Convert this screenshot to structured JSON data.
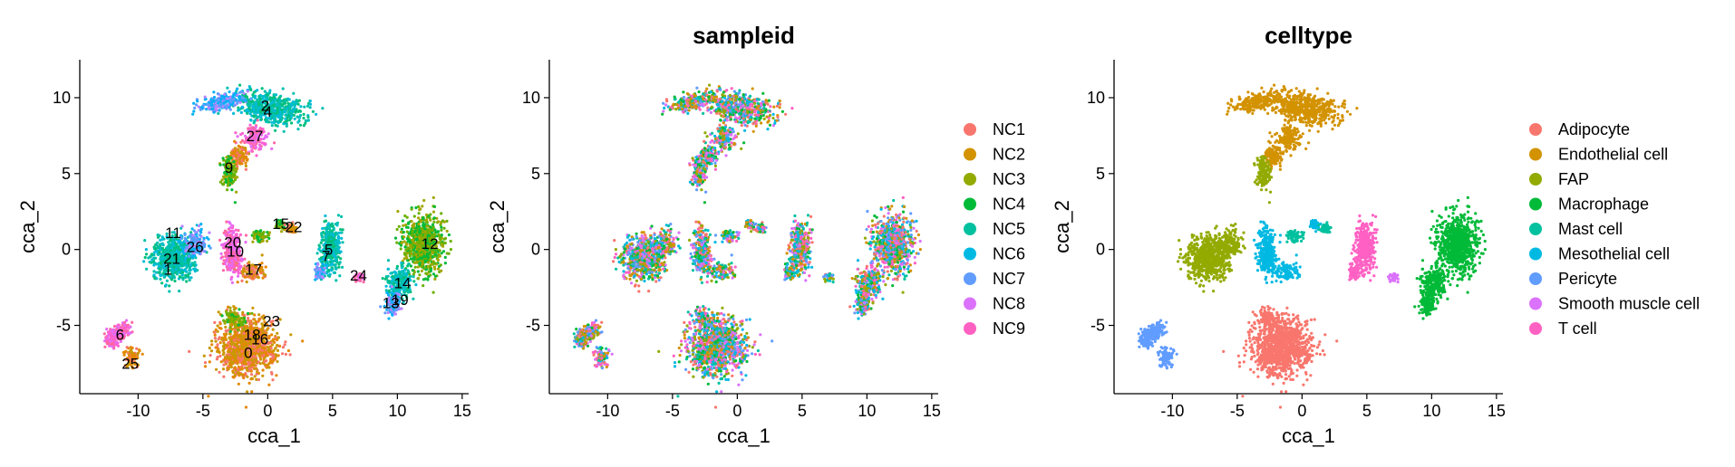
{
  "chart_data": [
    {
      "type": "scatter",
      "title": "",
      "xlabel": "cca_1",
      "ylabel": "cca_2",
      "xlim": [
        -14.5,
        15.5
      ],
      "ylim": [
        -9.5,
        12.5
      ],
      "xticks": [
        -10,
        -5,
        0,
        5,
        10,
        15
      ],
      "yticks": [
        -5,
        0,
        5,
        10
      ],
      "xtick_labels": [
        "-10",
        "-5",
        "0",
        "5",
        "10",
        "15"
      ],
      "ytick_labels": [
        "-5",
        "0",
        "5",
        "10"
      ],
      "color_by": "cluster",
      "legend": "none",
      "grid": false,
      "cluster_labels": [
        {
          "text": "0",
          "x": -1.5,
          "y": -6.8
        },
        {
          "text": "1",
          "x": -7.7,
          "y": -1.3
        },
        {
          "text": "2",
          "x": -0.2,
          "y": 9.5
        },
        {
          "text": "4",
          "x": 0.0,
          "y": 9.1
        },
        {
          "text": "5",
          "x": 4.7,
          "y": 0.0
        },
        {
          "text": "6",
          "x": -11.4,
          "y": -5.6
        },
        {
          "text": "7",
          "x": 4.5,
          "y": -0.4
        },
        {
          "text": "9",
          "x": -3.0,
          "y": 5.4
        },
        {
          "text": "10",
          "x": -2.5,
          "y": -0.1
        },
        {
          "text": "11",
          "x": -7.3,
          "y": 1.1
        },
        {
          "text": "12",
          "x": 12.5,
          "y": 0.4
        },
        {
          "text": "13",
          "x": 9.5,
          "y": -3.5
        },
        {
          "text": "14",
          "x": 10.4,
          "y": -2.2
        },
        {
          "text": "15",
          "x": 1.0,
          "y": 1.7
        },
        {
          "text": "16",
          "x": -0.6,
          "y": -5.9
        },
        {
          "text": "17",
          "x": -1.1,
          "y": -1.3
        },
        {
          "text": "18",
          "x": -1.2,
          "y": -5.6
        },
        {
          "text": "19",
          "x": 10.2,
          "y": -3.3
        },
        {
          "text": "20",
          "x": -2.7,
          "y": 0.5
        },
        {
          "text": "21",
          "x": -7.4,
          "y": -0.6
        },
        {
          "text": "22",
          "x": 2.0,
          "y": 1.5
        },
        {
          "text": "23",
          "x": 0.3,
          "y": -4.7
        },
        {
          "text": "24",
          "x": 7.0,
          "y": -1.7
        },
        {
          "text": "25",
          "x": -10.6,
          "y": -7.5
        },
        {
          "text": "26",
          "x": -5.6,
          "y": 0.2
        },
        {
          "text": "27",
          "x": -1.0,
          "y": 7.5
        }
      ]
    },
    {
      "type": "scatter",
      "title": "sampleid",
      "xlabel": "cca_1",
      "ylabel": "cca_2",
      "xlim": [
        -14.5,
        15.5
      ],
      "ylim": [
        -9.5,
        12.5
      ],
      "xticks": [
        -10,
        -5,
        0,
        5,
        10,
        15
      ],
      "yticks": [
        -5,
        0,
        5,
        10
      ],
      "xtick_labels": [
        "-10",
        "-5",
        "0",
        "5",
        "10",
        "15"
      ],
      "ytick_labels": [
        "-5",
        "0",
        "5",
        "10"
      ],
      "color_by": "sampleid",
      "legend": "right",
      "grid": false,
      "legend_entries": [
        {
          "name": "NC1",
          "color": "#F8766D"
        },
        {
          "name": "NC2",
          "color": "#D39200"
        },
        {
          "name": "NC3",
          "color": "#93AA00"
        },
        {
          "name": "NC4",
          "color": "#00BA38"
        },
        {
          "name": "NC5",
          "color": "#00C19F"
        },
        {
          "name": "NC6",
          "color": "#00B9E3"
        },
        {
          "name": "NC7",
          "color": "#619CFF"
        },
        {
          "name": "NC8",
          "color": "#DB72FB"
        },
        {
          "name": "NC9",
          "color": "#FF61C3"
        }
      ]
    },
    {
      "type": "scatter",
      "title": "celltype",
      "xlabel": "cca_1",
      "ylabel": "cca_2",
      "xlim": [
        -14.5,
        15.5
      ],
      "ylim": [
        -9.5,
        12.5
      ],
      "xticks": [
        -10,
        -5,
        0,
        5,
        10,
        15
      ],
      "yticks": [
        -5,
        0,
        5,
        10
      ],
      "xtick_labels": [
        "-10",
        "-5",
        "0",
        "5",
        "10",
        "15"
      ],
      "ytick_labels": [
        "-5",
        "0",
        "5",
        "10"
      ],
      "color_by": "celltype",
      "legend": "right",
      "grid": false,
      "legend_entries": [
        {
          "name": "Adipocyte",
          "color": "#F8766D"
        },
        {
          "name": "Endothelial cell",
          "color": "#D39200"
        },
        {
          "name": "FAP",
          "color": "#93AA00"
        },
        {
          "name": "Macrophage",
          "color": "#00BA38"
        },
        {
          "name": "Mast cell",
          "color": "#00C19F"
        },
        {
          "name": "Mesothelial cell",
          "color": "#00B9E3"
        },
        {
          "name": "Pericyte",
          "color": "#619CFF"
        },
        {
          "name": "Smooth muscle cell",
          "color": "#DB72FB"
        },
        {
          "name": "T cell",
          "color": "#FF61C3"
        }
      ]
    }
  ]
}
